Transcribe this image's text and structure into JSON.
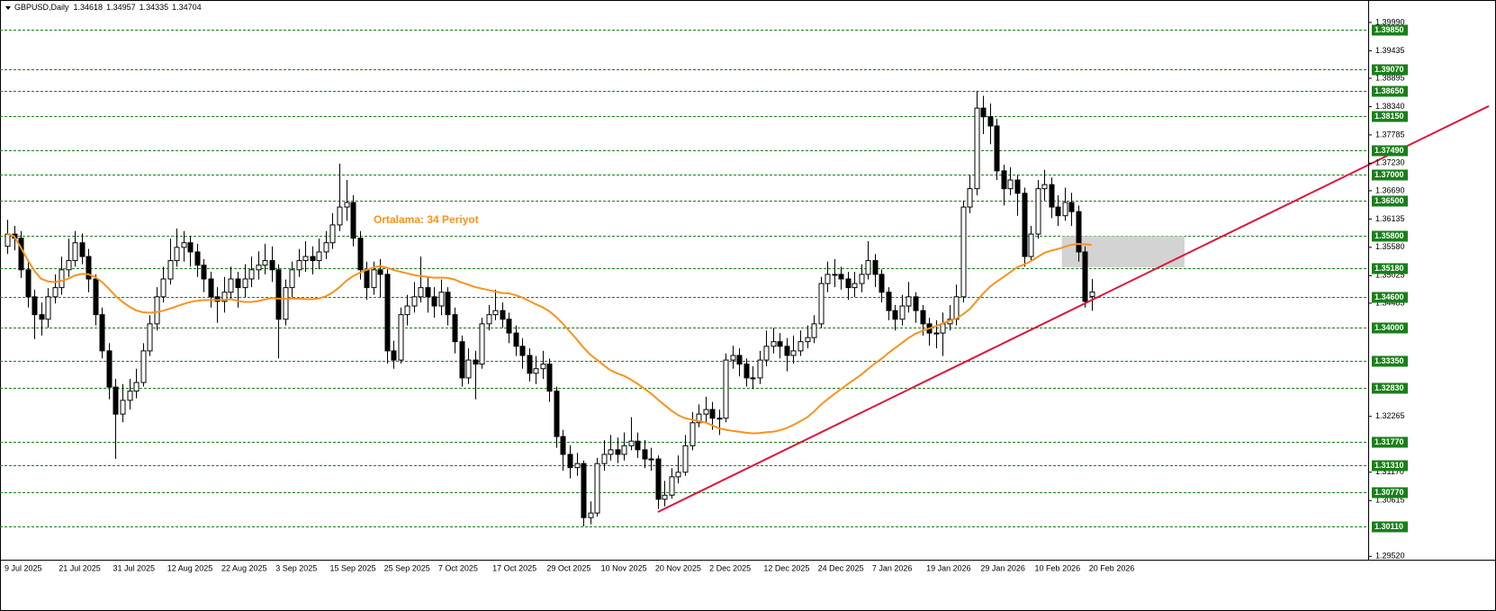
{
  "chart_data": {
    "type": "candlestick",
    "title": "GBPUSD,Daily",
    "categories": [
      "9 Jul 2025",
      null,
      null,
      null,
      null,
      null,
      null,
      null,
      "21 Jul 2025",
      null,
      null,
      null,
      null,
      null,
      null,
      null,
      "31 Jul 2025",
      null,
      null,
      null,
      null,
      null,
      null,
      null,
      "12 Aug 2025",
      null,
      null,
      null,
      null,
      null,
      null,
      null,
      "22 Aug 2025",
      null,
      null,
      null,
      null,
      null,
      null,
      null,
      "3 Sep 2025",
      null,
      null,
      null,
      null,
      null,
      null,
      null,
      "15 Sep 2025",
      null,
      null,
      null,
      null,
      null,
      null,
      null,
      "25 Sep 2025",
      null,
      null,
      null,
      null,
      null,
      null,
      null,
      "7 Oct 2025",
      null,
      null,
      null,
      null,
      null,
      null,
      null,
      "17 Oct 2025",
      null,
      null,
      null,
      null,
      null,
      null,
      null,
      "29 Oct 2025",
      null,
      null,
      null,
      null,
      null,
      null,
      null,
      "10 Nov 2025",
      null,
      null,
      null,
      null,
      null,
      null,
      null,
      "20 Nov 2025",
      null,
      null,
      null,
      null,
      null,
      null,
      null,
      "2 Dec 2025",
      null,
      null,
      null,
      null,
      null,
      null,
      null,
      "12 Dec 2025",
      null,
      null,
      null,
      null,
      null,
      null,
      null,
      "24 Dec 2025",
      null,
      null,
      null,
      null,
      null,
      null,
      null,
      "7 Jan 2026",
      null,
      null,
      null,
      null,
      null,
      null,
      null,
      "19 Jan 2026",
      null,
      null,
      null,
      null,
      null,
      null,
      null,
      "29 Jan 2026",
      null,
      null,
      null,
      null,
      null,
      null,
      null,
      "10 Feb 2026",
      null,
      null,
      null,
      null,
      null,
      null,
      null,
      "20 Feb 2026"
    ],
    "open": [
      1.356,
      1.3584,
      1.3576,
      1.3514,
      1.3461,
      1.3426,
      1.3417,
      1.3461,
      1.3479,
      1.3514,
      1.3532,
      1.3567,
      1.354,
      1.3496,
      1.3426,
      1.3355,
      1.3284,
      1.3231,
      1.3258,
      1.3276,
      1.3293,
      1.3355,
      1.3408,
      1.3461,
      1.3496,
      1.3532,
      1.3558,
      1.3567,
      1.3549,
      1.3523,
      1.3496,
      1.3461,
      1.3452,
      1.347,
      1.3496,
      1.3479,
      1.3496,
      1.3514,
      1.3523,
      1.3532,
      1.3514,
      1.3417,
      1.3479,
      1.3514,
      1.3532,
      1.354,
      1.3532,
      1.3549,
      1.3567,
      1.3602,
      1.3637,
      1.3646,
      1.3576,
      1.3514,
      1.3479,
      1.3514,
      1.3505,
      1.3355,
      1.3337,
      1.3426,
      1.3443,
      1.3461,
      1.3479,
      1.3461,
      1.3443,
      1.347,
      1.3426,
      1.3373,
      1.3302,
      1.3337,
      1.3329,
      1.3408,
      1.3426,
      1.3434,
      1.3417,
      1.339,
      1.3364,
      1.3346,
      1.3311,
      1.332,
      1.3329,
      1.3276,
      1.3187,
      1.3152,
      1.3126,
      1.3134,
      1.3028,
      1.3037,
      1.3134,
      1.3152,
      1.3161,
      1.3152,
      1.3169,
      1.3178,
      1.3161,
      1.3143,
      1.3143,
      1.3064,
      1.3072,
      1.3108,
      1.3117,
      1.3169,
      1.3214,
      1.3231,
      1.324,
      1.3223,
      1.3223,
      1.3337,
      1.3346,
      1.3329,
      1.3302,
      1.3302,
      1.3337,
      1.3364,
      1.3373,
      1.3364,
      1.3346,
      1.3355,
      1.3373,
      1.3381,
      1.3408,
      1.3487,
      1.3505,
      1.3505,
      1.3496,
      1.3479,
      1.3487,
      1.3505,
      1.3532,
      1.3505,
      1.347,
      1.3434,
      1.3417,
      1.3443,
      1.3461,
      1.3434,
      1.3408,
      1.339,
      1.339,
      1.3408,
      1.3417,
      1.3461,
      1.3637,
      1.3673,
      1.3831,
      1.3814,
      1.3796,
      1.3708,
      1.3673,
      1.369,
      1.3664,
      1.354,
      1.3584,
      1.3673,
      1.3681,
      1.3637,
      1.362,
      1.3646,
      1.3628,
      1.3549,
      1.34618
    ],
    "high": [
      1.3612,
      1.36,
      1.359,
      1.353,
      1.3475,
      1.345,
      1.3478,
      1.3505,
      1.354,
      1.3575,
      1.359,
      1.3585,
      1.3555,
      1.3505,
      1.344,
      1.337,
      1.33,
      1.329,
      1.33,
      1.332,
      1.337,
      1.3425,
      1.348,
      1.352,
      1.3575,
      1.3595,
      1.359,
      1.358,
      1.3565,
      1.3535,
      1.351,
      1.348,
      1.35,
      1.352,
      1.351,
      1.3525,
      1.354,
      1.355,
      1.3565,
      1.356,
      1.3525,
      1.3495,
      1.353,
      1.3555,
      1.357,
      1.356,
      1.3575,
      1.359,
      1.3625,
      1.3722,
      1.369,
      1.366,
      1.359,
      1.353,
      1.353,
      1.3535,
      1.3515,
      1.3375,
      1.344,
      1.3465,
      1.349,
      1.354,
      1.35,
      1.348,
      1.3495,
      1.348,
      1.344,
      1.3385,
      1.336,
      1.3355,
      1.342,
      1.3445,
      1.3475,
      1.345,
      1.343,
      1.3405,
      1.338,
      1.336,
      1.3345,
      1.3355,
      1.334,
      1.3285,
      1.32,
      1.317,
      1.3155,
      1.314,
      1.306,
      1.3145,
      1.318,
      1.319,
      1.3185,
      1.3195,
      1.3225,
      1.3195,
      1.318,
      1.3165,
      1.315,
      1.31,
      1.3125,
      1.315,
      1.319,
      1.3235,
      1.325,
      1.3265,
      1.3255,
      1.324,
      1.335,
      1.3365,
      1.336,
      1.334,
      1.3325,
      1.3355,
      1.3395,
      1.34,
      1.339,
      1.338,
      1.3385,
      1.3395,
      1.3405,
      1.3425,
      1.35,
      1.353,
      1.3535,
      1.352,
      1.351,
      1.351,
      1.3525,
      1.357,
      1.3545,
      1.3515,
      1.348,
      1.3445,
      1.3465,
      1.349,
      1.347,
      1.3445,
      1.342,
      1.3415,
      1.343,
      1.3445,
      1.3485,
      1.365,
      1.37,
      1.3865,
      1.3855,
      1.384,
      1.381,
      1.372,
      1.3715,
      1.37,
      1.3675,
      1.36,
      1.369,
      1.371,
      1.3695,
      1.366,
      1.3675,
      1.3665,
      1.364,
      1.356,
      1.34957
    ],
    "low": [
      1.3545,
      1.3552,
      1.3498,
      1.344,
      1.3378,
      1.3385,
      1.34,
      1.3448,
      1.3465,
      1.35,
      1.352,
      1.3525,
      1.347,
      1.3405,
      1.334,
      1.326,
      1.3143,
      1.3215,
      1.324,
      1.3262,
      1.3285,
      1.3345,
      1.3395,
      1.345,
      1.3485,
      1.352,
      1.353,
      1.352,
      1.35,
      1.347,
      1.344,
      1.341,
      1.343,
      1.3455,
      1.344,
      1.346,
      1.348,
      1.3495,
      1.3505,
      1.349,
      1.334,
      1.3405,
      1.346,
      1.35,
      1.351,
      1.3505,
      1.3515,
      1.3535,
      1.3555,
      1.359,
      1.361,
      1.356,
      1.3495,
      1.3455,
      1.3465,
      1.346,
      1.333,
      1.332,
      1.333,
      1.3405,
      1.343,
      1.345,
      1.343,
      1.342,
      1.3425,
      1.3405,
      1.335,
      1.3285,
      1.329,
      1.326,
      1.332,
      1.3395,
      1.3415,
      1.34,
      1.337,
      1.3345,
      1.332,
      1.3295,
      1.329,
      1.33,
      1.3255,
      1.3165,
      1.312,
      1.3105,
      1.311,
      1.3011,
      1.3015,
      1.303,
      1.312,
      1.314,
      1.3135,
      1.314,
      1.316,
      1.3145,
      1.3125,
      1.312,
      1.3045,
      1.305,
      1.3065,
      1.3095,
      1.311,
      1.316,
      1.3205,
      1.3215,
      1.32,
      1.319,
      1.3215,
      1.332,
      1.3305,
      1.3285,
      1.328,
      1.329,
      1.3325,
      1.335,
      1.334,
      1.3315,
      1.333,
      1.3345,
      1.336,
      1.337,
      1.34,
      1.347,
      1.348,
      1.3475,
      1.3455,
      1.346,
      1.347,
      1.3495,
      1.348,
      1.345,
      1.3415,
      1.3395,
      1.3405,
      1.343,
      1.341,
      1.3385,
      1.3365,
      1.336,
      1.3345,
      1.3395,
      1.3405,
      1.345,
      1.3625,
      1.366,
      1.378,
      1.376,
      1.369,
      1.364,
      1.366,
      1.362,
      1.352,
      1.353,
      1.3575,
      1.365,
      1.3615,
      1.36,
      1.361,
      1.36,
      1.353,
      1.344,
      1.34335
    ],
    "close": [
      1.3584,
      1.3576,
      1.3514,
      1.3461,
      1.3426,
      1.3417,
      1.3461,
      1.3479,
      1.3514,
      1.3532,
      1.3567,
      1.354,
      1.3496,
      1.3426,
      1.3355,
      1.3284,
      1.3231,
      1.3258,
      1.3276,
      1.3293,
      1.3355,
      1.3408,
      1.3461,
      1.3496,
      1.3532,
      1.3558,
      1.3567,
      1.3549,
      1.3523,
      1.3496,
      1.3461,
      1.3452,
      1.347,
      1.3496,
      1.3479,
      1.3496,
      1.3514,
      1.3523,
      1.3532,
      1.3514,
      1.3417,
      1.3479,
      1.3514,
      1.3532,
      1.354,
      1.3532,
      1.3549,
      1.3567,
      1.3602,
      1.3637,
      1.3646,
      1.3576,
      1.3514,
      1.3479,
      1.3514,
      1.3505,
      1.3355,
      1.3337,
      1.3426,
      1.3443,
      1.3461,
      1.3479,
      1.3461,
      1.3443,
      1.347,
      1.3426,
      1.3373,
      1.3302,
      1.3337,
      1.3329,
      1.3408,
      1.3426,
      1.3434,
      1.3417,
      1.339,
      1.3364,
      1.3346,
      1.3311,
      1.332,
      1.3329,
      1.3276,
      1.3187,
      1.3152,
      1.3126,
      1.3134,
      1.3028,
      1.3037,
      1.3134,
      1.3152,
      1.3161,
      1.3152,
      1.3169,
      1.3178,
      1.3161,
      1.3143,
      1.3143,
      1.3064,
      1.3072,
      1.3108,
      1.3117,
      1.3169,
      1.3214,
      1.3231,
      1.324,
      1.3223,
      1.3223,
      1.3337,
      1.3346,
      1.3329,
      1.3302,
      1.3302,
      1.3337,
      1.3364,
      1.3373,
      1.3364,
      1.3346,
      1.3355,
      1.3373,
      1.3381,
      1.3408,
      1.3487,
      1.3505,
      1.3505,
      1.3496,
      1.3479,
      1.3487,
      1.3505,
      1.3532,
      1.3505,
      1.347,
      1.3434,
      1.3417,
      1.3443,
      1.3461,
      1.3434,
      1.3408,
      1.339,
      1.339,
      1.3408,
      1.3417,
      1.3461,
      1.3637,
      1.3673,
      1.3831,
      1.3814,
      1.3796,
      1.3708,
      1.3673,
      1.369,
      1.3664,
      1.354,
      1.3584,
      1.3673,
      1.3681,
      1.3637,
      1.362,
      1.3646,
      1.3628,
      1.3549,
      1.3452,
      1.34704
    ],
    "colors": {
      "up": "#ffffff",
      "down": "#000000",
      "wick": "#000000"
    },
    "ylim": [
      1.2949,
      1.4043
    ],
    "yticks": [
      {
        "value": 1.3999,
        "label": "1.39990"
      },
      {
        "value": 1.39435,
        "label": "1.39435"
      },
      {
        "value": 1.38895,
        "label": "1.38895"
      },
      {
        "value": 1.3834,
        "label": "1.38340"
      },
      {
        "value": 1.37785,
        "label": "1.37785"
      },
      {
        "value": 1.3723,
        "label": "1.37230"
      },
      {
        "value": 1.3669,
        "label": "1.36690"
      },
      {
        "value": 1.36135,
        "label": "1.36135"
      },
      {
        "value": 1.3558,
        "label": "1.35580"
      },
      {
        "value": 1.35025,
        "label": "1.35025"
      },
      {
        "value": 1.34485,
        "label": "1.34485"
      },
      {
        "value": 1.32265,
        "label": "1.32265"
      },
      {
        "value": 1.3117,
        "label": "1.31170"
      },
      {
        "value": 1.30615,
        "label": "1.30615"
      },
      {
        "value": 1.2952,
        "label": "1.29520"
      }
    ],
    "levels": [
      {
        "value": 1.3985,
        "label": "1.39850"
      },
      {
        "value": 1.3907,
        "label": "1.39070"
      },
      {
        "value": 1.3865,
        "label": "1.38650"
      },
      {
        "value": 1.3815,
        "label": "1.38150"
      },
      {
        "value": 1.3749,
        "label": "1.37490"
      },
      {
        "value": 1.37,
        "label": "1.37000"
      },
      {
        "value": 1.365,
        "label": "1.36500"
      },
      {
        "value": 1.358,
        "label": "1.35800"
      },
      {
        "value": 1.3518,
        "label": "1.35180"
      },
      {
        "value": 1.346,
        "label": "1.34600"
      },
      {
        "value": 1.34,
        "label": "1.34000"
      },
      {
        "value": 1.3335,
        "label": "1.33350"
      },
      {
        "value": 1.3283,
        "label": "1.32830"
      },
      {
        "value": 1.3177,
        "label": "1.31770"
      },
      {
        "value": 1.3131,
        "label": "1.31310"
      },
      {
        "value": 1.3077,
        "label": "1.30770"
      },
      {
        "value": 1.3011,
        "label": "1.30110"
      }
    ],
    "level_color": "#1a7f1a",
    "ma_period": 34,
    "ma_color": "#f7931e",
    "annotation": "Ortalama: 34 Periyot",
    "trendline": {
      "color": "#dc143c",
      "x": [
        96,
        218.6
      ],
      "y": [
        1.3039,
        1.3835
      ]
    },
    "zone": {
      "color": "#d3d3d3",
      "x": [
        155.6,
        173.7
      ],
      "y": [
        1.3519,
        1.358
      ]
    }
  }
}
